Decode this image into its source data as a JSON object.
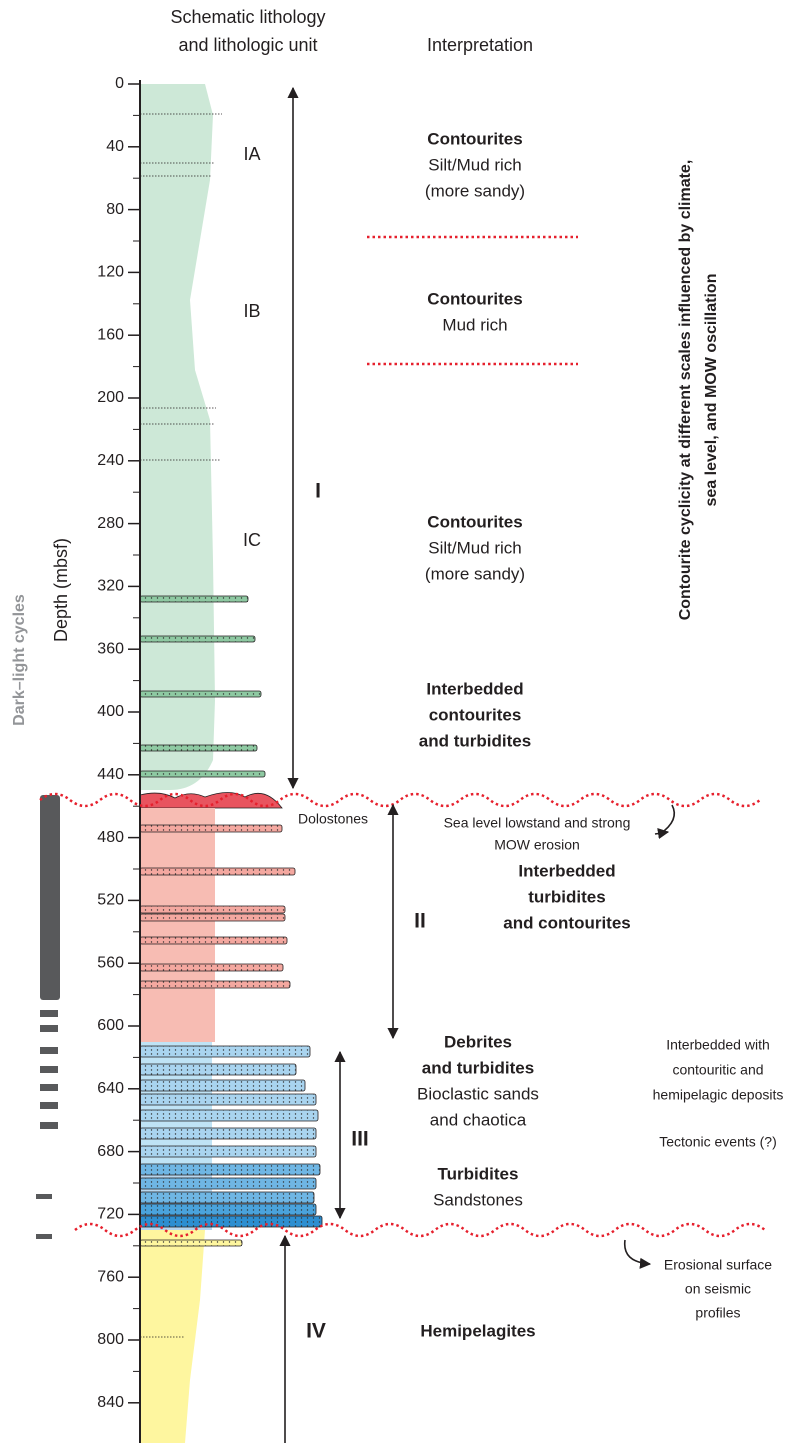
{
  "header": {
    "lithology": [
      "Schematic lithology",
      "and lithologic unit"
    ],
    "interpretation": "Interpretation"
  },
  "depth_axis": {
    "label": "Depth (mbsf)",
    "ticks": [
      0,
      40,
      80,
      120,
      160,
      200,
      240,
      280,
      320,
      360,
      400,
      440,
      480,
      520,
      560,
      600,
      640,
      680,
      720,
      760,
      800,
      840
    ]
  },
  "units": [
    "IA",
    "IB",
    "IC"
  ],
  "roman_units": [
    "I",
    "II",
    "III",
    "IV"
  ],
  "interpretation": [
    {
      "bold": [
        "Contourites"
      ],
      "normal": [
        "Silt/Mud rich",
        "(more sandy)"
      ]
    },
    {
      "bold": [
        "Contourites"
      ],
      "normal": [
        "Mud rich"
      ]
    },
    {
      "bold": [
        "Contourites"
      ],
      "normal": [
        "Silt/Mud rich",
        "(more sandy)"
      ]
    },
    {
      "bold": [
        "Interbedded",
        "contourites",
        "and turbidites"
      ]
    },
    {
      "bold": [
        "Interbedded",
        "turbidites",
        "and contourites"
      ]
    },
    {
      "bold": [
        "Debrites",
        "and turbidites"
      ],
      "normal": [
        "Bioclastic sands",
        "and chaotica"
      ]
    },
    {
      "bold": [
        "Turbidites"
      ],
      "normal": [
        "Sandstones"
      ]
    },
    {
      "bold": [
        "Hemipelagites"
      ]
    }
  ],
  "annotations": {
    "dolostones": "Dolostones",
    "lowstand": [
      "Sea level lowstand and strong",
      "MOW erosion"
    ],
    "interbedded": [
      "Interbedded with",
      "contouritic and",
      "hemipelagic deposits"
    ],
    "tectonic": "Tectonic events (?)",
    "erosional": [
      "Erosional surface",
      "on seismic",
      "profiles"
    ],
    "cyclicity": [
      "Contourite cyclicity at different scales influenced by climate,",
      "sea level, and MOW oscillation"
    ],
    "dark_light": "Dark–light cycles"
  }
}
